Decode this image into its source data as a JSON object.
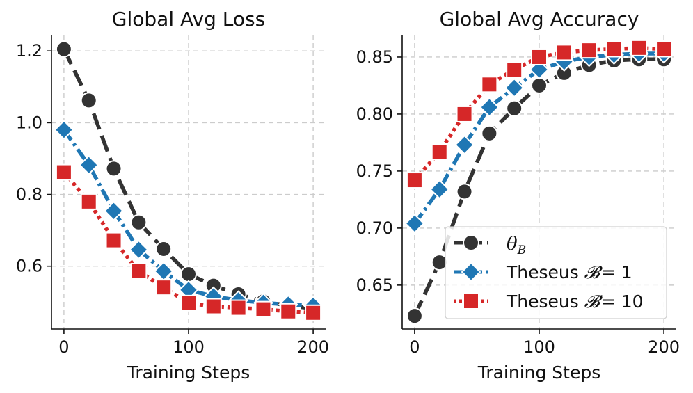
{
  "chart_data": [
    {
      "type": "line",
      "title": "Global Avg Loss",
      "xlabel": "Training Steps",
      "ylabel": "",
      "xlim": [
        -10,
        210
      ],
      "ylim": [
        0.425,
        1.245
      ],
      "xticks": [
        0,
        100,
        200
      ],
      "xtick_labels": [
        "0",
        "100",
        "200"
      ],
      "yticks": [
        0.6,
        0.8,
        1.0,
        1.2
      ],
      "ytick_labels": [
        "0.6",
        "0.8",
        "1.0",
        "1.2"
      ],
      "grid": true,
      "series": [
        {
          "name": "theta_B",
          "color": "#333333",
          "marker": "circle",
          "linestyle": "dash",
          "x": [
            0,
            20,
            40,
            60,
            80,
            100,
            120,
            140,
            160,
            180,
            200
          ],
          "y": [
            1.205,
            1.062,
            0.872,
            0.722,
            0.648,
            0.578,
            0.546,
            0.522,
            0.502,
            0.49,
            0.482
          ]
        },
        {
          "name": "Theseus B=1",
          "color": "#1f77b4",
          "marker": "diamond",
          "linestyle": "dashdot",
          "x": [
            0,
            20,
            40,
            60,
            80,
            100,
            120,
            140,
            160,
            180,
            200
          ],
          "y": [
            0.98,
            0.882,
            0.754,
            0.646,
            0.586,
            0.534,
            0.516,
            0.505,
            0.498,
            0.493,
            0.49
          ]
        },
        {
          "name": "Theseus B=10",
          "color": "#d62728",
          "marker": "square",
          "linestyle": "dot",
          "x": [
            0,
            20,
            40,
            60,
            80,
            100,
            120,
            140,
            160,
            180,
            200
          ],
          "y": [
            0.862,
            0.78,
            0.672,
            0.586,
            0.541,
            0.497,
            0.488,
            0.484,
            0.48,
            0.474,
            0.47
          ]
        }
      ]
    },
    {
      "type": "line",
      "title": "Global Avg Accuracy",
      "xlabel": "Training Steps",
      "ylabel": "",
      "xlim": [
        -10,
        210
      ],
      "ylim": [
        0.6115,
        0.8695
      ],
      "xticks": [
        0,
        100,
        200
      ],
      "xtick_labels": [
        "0",
        "100",
        "200"
      ],
      "yticks": [
        0.65,
        0.7,
        0.75,
        0.8,
        0.85
      ],
      "ytick_labels": [
        "0.65",
        "0.70",
        "0.75",
        "0.80",
        "0.85"
      ],
      "grid": true,
      "legend_position": "bottom-right",
      "series": [
        {
          "name": "theta_B",
          "color": "#333333",
          "marker": "circle",
          "linestyle": "dash",
          "x": [
            0,
            20,
            40,
            60,
            80,
            100,
            120,
            140,
            160,
            180,
            200
          ],
          "y": [
            0.623,
            0.67,
            0.732,
            0.783,
            0.805,
            0.825,
            0.836,
            0.843,
            0.847,
            0.848,
            0.848
          ]
        },
        {
          "name": "Theseus B=1",
          "color": "#1f77b4",
          "marker": "diamond",
          "linestyle": "dashdot",
          "x": [
            0,
            20,
            40,
            60,
            80,
            100,
            120,
            140,
            160,
            180,
            200
          ],
          "y": [
            0.704,
            0.734,
            0.773,
            0.806,
            0.823,
            0.839,
            0.846,
            0.85,
            0.852,
            0.853,
            0.853
          ]
        },
        {
          "name": "Theseus B=10",
          "color": "#d62728",
          "marker": "square",
          "linestyle": "dot",
          "x": [
            0,
            20,
            40,
            60,
            80,
            100,
            120,
            140,
            160,
            180,
            200
          ],
          "y": [
            0.742,
            0.767,
            0.8,
            0.826,
            0.839,
            0.85,
            0.854,
            0.856,
            0.857,
            0.858,
            0.857
          ]
        }
      ]
    }
  ],
  "legend": {
    "theta": "θ",
    "theta_sub": "B",
    "theseus_word": "Theseus",
    "script_b": "𝓑",
    "eq1": "= 1",
    "eq10": "= 10"
  }
}
